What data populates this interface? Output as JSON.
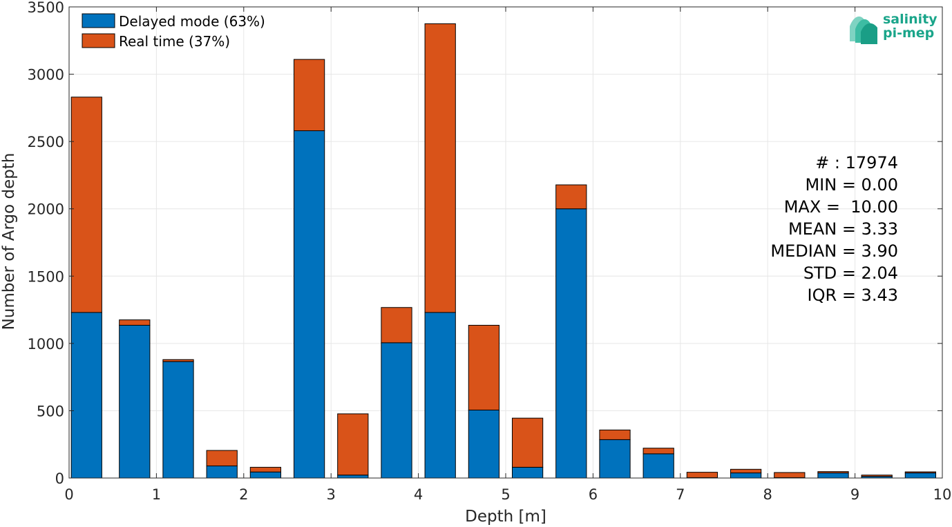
{
  "chart_data": {
    "type": "bar",
    "stacked": true,
    "xlabel": "Depth [m]",
    "ylabel": "Number of Argo depth",
    "xlim": [
      0,
      10
    ],
    "ylim": [
      0,
      3500
    ],
    "grid": true,
    "legend_position": "top-left",
    "x_ticks": [
      0,
      1,
      2,
      3,
      4,
      5,
      6,
      7,
      8,
      9,
      10
    ],
    "y_ticks": [
      0,
      500,
      1000,
      1500,
      2000,
      2500,
      3000,
      3500
    ],
    "bin_centers": [
      0.2,
      0.75,
      1.25,
      1.75,
      2.25,
      2.75,
      3.25,
      3.75,
      4.25,
      4.75,
      5.25,
      5.75,
      6.25,
      6.75,
      7.25,
      7.75,
      8.25,
      8.75,
      9.25,
      9.75
    ],
    "series": [
      {
        "name": "Delayed mode (63%)",
        "color": "#0072bd",
        "values": [
          1230,
          1135,
          865,
          90,
          45,
          2580,
          22,
          1005,
          1230,
          505,
          80,
          2000,
          285,
          180,
          3,
          38,
          3,
          38,
          12,
          38
        ]
      },
      {
        "name": "Real time (37%)",
        "color": "#d95319",
        "values": [
          1600,
          40,
          15,
          115,
          35,
          530,
          455,
          262,
          2145,
          630,
          365,
          178,
          72,
          42,
          40,
          27,
          38,
          10,
          10,
          8
        ]
      }
    ]
  },
  "stats": {
    "count": "# : 17974",
    "min": "MIN = 0.00",
    "max": "MAX =  10.00",
    "mean": "MEAN = 3.33",
    "median": "MEDIAN = 3.90",
    "std": "STD = 2.04",
    "iqr": "IQR = 3.43"
  },
  "logo": {
    "line1": "salinity",
    "line2": "pi-mep"
  }
}
